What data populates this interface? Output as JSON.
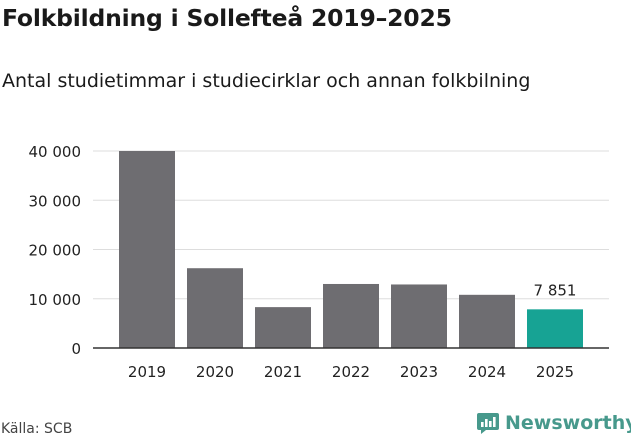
{
  "title": "Folkbildning i Sollefteå 2019–2025",
  "subtitle": "Antal studietimmar i studiecirklar och annan folkbilning",
  "source": "Källa: SCB",
  "brand": {
    "name": "Newsworthy",
    "icon": "newsworthy-logo-icon"
  },
  "colors": {
    "bar": "#6e6d71",
    "highlight": "#17a394",
    "grid": "#dddddd",
    "axis": "#333333",
    "brand": "#47998c"
  },
  "chart_data": {
    "type": "bar",
    "categories": [
      "2019",
      "2020",
      "2021",
      "2022",
      "2023",
      "2024",
      "2025"
    ],
    "values": [
      40000,
      16200,
      8300,
      13000,
      12900,
      10800,
      7851
    ],
    "highlight_index": 6,
    "data_labels": [
      {
        "index": 6,
        "text": "7 851"
      }
    ],
    "yticks": [
      0,
      10000,
      20000,
      30000,
      40000
    ],
    "ytick_labels": [
      "0",
      "10 000",
      "20 000",
      "30 000",
      "40 000"
    ],
    "ylim": [
      0,
      40000
    ],
    "grid": true,
    "xlabel": "",
    "ylabel": ""
  }
}
